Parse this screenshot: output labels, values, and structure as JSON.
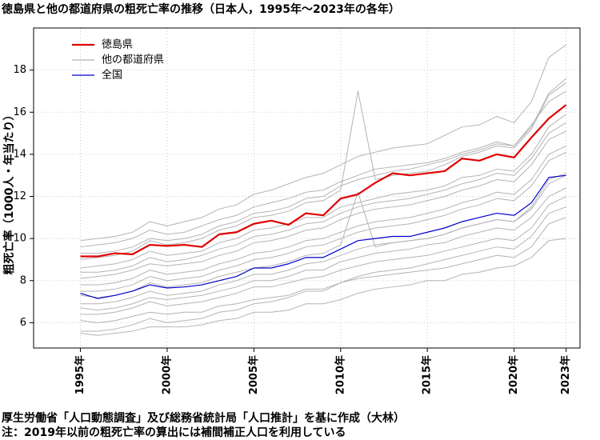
{
  "chart_data": {
    "type": "line",
    "title": "徳島県と他の都道府県の粗死亡率の推移（日本人，1995年～2023年の各年）",
    "y_label": "粗死亡率（1000人・年当たり）",
    "notes": [
      "厚生労働省「人口動態調査」及び総務省統計局「人口推計」を基に作成（大林）",
      "注：2019年以前の粗死亡率の算出には補間補正人口を利用している"
    ],
    "x": [
      1995,
      1996,
      1997,
      1998,
      1999,
      2000,
      2001,
      2002,
      2003,
      2004,
      2005,
      2006,
      2007,
      2008,
      2009,
      2010,
      2011,
      2012,
      2013,
      2014,
      2015,
      2016,
      2017,
      2018,
      2019,
      2020,
      2021,
      2022,
      2023
    ],
    "xlim": [
      1992.3,
      2023.8
    ],
    "xticks": [
      {
        "value": 1995,
        "label": "1995年"
      },
      {
        "value": 2000,
        "label": "2000年"
      },
      {
        "value": 2005,
        "label": "2005年"
      },
      {
        "value": 2010,
        "label": "2010年"
      },
      {
        "value": 2015,
        "label": "2015年"
      },
      {
        "value": 2020,
        "label": "2020年"
      },
      {
        "value": 2023,
        "label": "2023年"
      }
    ],
    "ylim": [
      4.8,
      20
    ],
    "yticks": [
      6,
      8,
      10,
      12,
      14,
      16,
      18
    ],
    "grid": true,
    "legend": "top-left",
    "series": [
      {
        "name": "徳島県",
        "color": "#e00000",
        "values": [
          9.15,
          9.15,
          9.3,
          9.25,
          9.7,
          9.65,
          9.7,
          9.6,
          10.2,
          10.3,
          10.7,
          10.85,
          10.65,
          11.2,
          11.1,
          11.9,
          12.1,
          12.65,
          13.1,
          13.0,
          13.1,
          13.2,
          13.8,
          13.7,
          14.0,
          13.85,
          14.8,
          15.7,
          16.35
        ]
      },
      {
        "name": "他の都道府県",
        "color": "#b4b4b4",
        "lines": [
          [
            9.9,
            10.0,
            10.1,
            10.3,
            10.8,
            10.6,
            10.8,
            11.0,
            11.4,
            11.6,
            12.1,
            12.3,
            12.6,
            12.9,
            13.1,
            13.5,
            13.9,
            14.1,
            14.3,
            14.4,
            14.5,
            14.9,
            15.3,
            15.4,
            15.8,
            15.5,
            16.5,
            18.6,
            19.2
          ],
          [
            9.0,
            9.1,
            9.2,
            9.4,
            9.9,
            9.7,
            9.8,
            10.0,
            10.4,
            10.6,
            11.0,
            11.1,
            11.3,
            11.7,
            11.8,
            12.3,
            17.0,
            12.8,
            13.0,
            13.1,
            13.2,
            13.5,
            13.9,
            14.1,
            14.4,
            14.3,
            15.2,
            16.8,
            17.4
          ],
          [
            9.6,
            9.7,
            9.8,
            10.0,
            10.4,
            10.2,
            10.3,
            10.6,
            10.9,
            11.1,
            11.5,
            11.7,
            11.9,
            12.2,
            12.3,
            12.7,
            13.0,
            13.3,
            13.4,
            13.5,
            13.6,
            13.8,
            14.1,
            14.3,
            14.6,
            14.4,
            15.3,
            16.9,
            17.6
          ],
          [
            8.6,
            8.7,
            8.8,
            9.0,
            9.4,
            9.2,
            9.3,
            9.4,
            9.8,
            10.0,
            10.4,
            10.5,
            10.7,
            11.0,
            11.0,
            11.5,
            11.7,
            11.9,
            12.1,
            12.2,
            12.3,
            12.5,
            12.9,
            13.0,
            13.3,
            13.2,
            14.0,
            15.3,
            15.9
          ],
          [
            7.3,
            7.2,
            7.3,
            7.5,
            7.9,
            7.7,
            7.8,
            7.9,
            8.2,
            8.4,
            8.6,
            8.7,
            8.9,
            9.2,
            9.3,
            9.7,
            12.2,
            9.6,
            9.8,
            9.9,
            10.0,
            10.2,
            10.5,
            10.7,
            10.9,
            10.8,
            11.5,
            12.8,
            13.1
          ],
          [
            8.1,
            8.2,
            8.3,
            8.5,
            8.8,
            8.7,
            8.8,
            8.9,
            9.2,
            9.4,
            9.8,
            9.9,
            10.1,
            10.4,
            10.5,
            10.9,
            11.2,
            11.4,
            11.5,
            11.6,
            11.8,
            12.0,
            12.3,
            12.5,
            12.8,
            12.7,
            13.5,
            14.7,
            15.1
          ],
          [
            7.8,
            7.8,
            7.9,
            8.1,
            8.5,
            8.3,
            8.4,
            8.5,
            8.8,
            9.0,
            9.3,
            9.4,
            9.6,
            9.9,
            10.0,
            10.3,
            10.6,
            10.8,
            10.9,
            11.0,
            11.2,
            11.4,
            11.7,
            11.9,
            12.2,
            12.1,
            12.8,
            14.0,
            14.4
          ],
          [
            6.9,
            6.9,
            7.0,
            7.2,
            7.5,
            7.3,
            7.4,
            7.5,
            7.8,
            8.0,
            8.3,
            8.3,
            8.5,
            8.8,
            8.9,
            9.2,
            9.5,
            9.7,
            9.8,
            9.9,
            10.0,
            10.2,
            10.5,
            10.7,
            10.9,
            10.8,
            11.4,
            12.6,
            13.0
          ],
          [
            6.4,
            6.4,
            6.5,
            6.7,
            7.0,
            6.8,
            6.9,
            7.0,
            7.2,
            7.4,
            7.7,
            7.7,
            7.9,
            8.1,
            8.2,
            8.5,
            8.7,
            8.9,
            9.0,
            9.1,
            9.2,
            9.4,
            9.6,
            9.8,
            10.0,
            9.9,
            10.5,
            11.6,
            12.0
          ],
          [
            6.1,
            6.0,
            6.1,
            6.3,
            6.5,
            6.4,
            6.5,
            6.5,
            6.8,
            6.9,
            7.1,
            7.2,
            7.3,
            7.6,
            7.6,
            7.9,
            8.1,
            8.2,
            8.3,
            8.4,
            8.5,
            8.6,
            8.8,
            9.0,
            9.2,
            9.1,
            9.6,
            10.7,
            11.0
          ],
          [
            5.6,
            5.6,
            5.7,
            5.9,
            6.2,
            6.0,
            6.1,
            6.2,
            6.5,
            6.6,
            6.9,
            7.0,
            7.2,
            7.5,
            7.5,
            7.9,
            8.2,
            8.4,
            8.5,
            8.6,
            8.8,
            9.0,
            9.2,
            9.4,
            9.6,
            9.5,
            10.1,
            11.2,
            11.5
          ],
          [
            5.5,
            5.4,
            5.5,
            5.6,
            5.8,
            5.8,
            5.8,
            5.9,
            6.1,
            6.2,
            6.5,
            6.5,
            6.6,
            6.9,
            6.9,
            7.1,
            7.4,
            7.6,
            7.7,
            7.8,
            8.0,
            8.0,
            8.3,
            8.4,
            8.6,
            8.7,
            9.1,
            9.9,
            10.0
          ],
          [
            8.4,
            8.4,
            8.5,
            8.7,
            9.1,
            8.9,
            9.0,
            9.2,
            9.5,
            9.7,
            10.1,
            10.2,
            10.4,
            10.7,
            10.8,
            11.2,
            11.5,
            11.7,
            11.8,
            11.9,
            12.1,
            12.3,
            12.6,
            12.8,
            13.1,
            13.0,
            13.8,
            15.0,
            15.5
          ],
          [
            7.5,
            7.5,
            7.6,
            7.8,
            8.2,
            8.0,
            8.1,
            8.2,
            8.5,
            8.7,
            9.0,
            9.1,
            9.3,
            9.6,
            9.7,
            10.0,
            10.3,
            10.5,
            10.6,
            10.7,
            10.9,
            11.1,
            11.4,
            11.6,
            11.9,
            11.8,
            12.5,
            13.7,
            14.1
          ],
          [
            9.3,
            9.3,
            9.4,
            9.6,
            10.0,
            9.9,
            10.0,
            10.2,
            10.6,
            10.8,
            11.2,
            11.3,
            11.5,
            11.9,
            12.0,
            12.5,
            12.8,
            13.0,
            13.2,
            13.3,
            13.5,
            13.7,
            14.0,
            14.2,
            14.5,
            14.4,
            15.4,
            16.5,
            17.0
          ],
          [
            6.7,
            6.6,
            6.7,
            6.9,
            7.2,
            7.1,
            7.2,
            7.3,
            7.5,
            7.7,
            8.0,
            8.0,
            8.2,
            8.5,
            8.5,
            8.9,
            9.1,
            9.3,
            9.4,
            9.5,
            9.7,
            9.8,
            10.1,
            10.3,
            10.5,
            10.4,
            11.0,
            12.0,
            12.4
          ]
        ]
      },
      {
        "name": "全国",
        "color": "#0000cc",
        "values": [
          7.4,
          7.15,
          7.3,
          7.5,
          7.8,
          7.65,
          7.7,
          7.8,
          8.0,
          8.2,
          8.6,
          8.6,
          8.8,
          9.1,
          9.1,
          9.5,
          9.9,
          10.0,
          10.1,
          10.1,
          10.3,
          10.5,
          10.8,
          11.0,
          11.2,
          11.1,
          11.7,
          12.9,
          13.0
        ]
      }
    ]
  }
}
